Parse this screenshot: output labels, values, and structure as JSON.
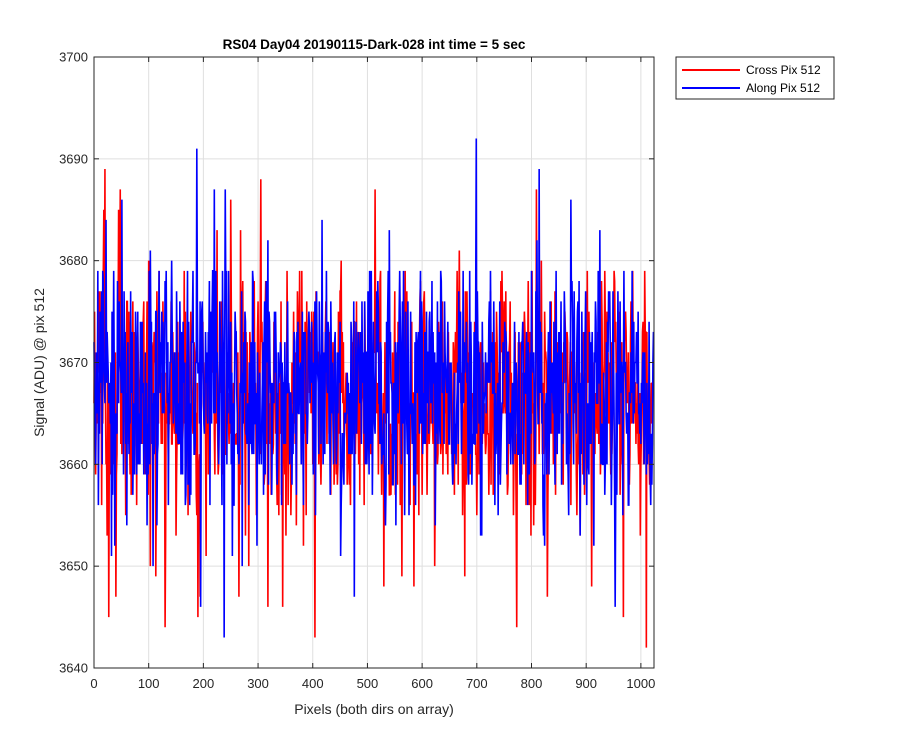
{
  "chart_data": {
    "type": "line",
    "title": "RS04 Day04 20190115-Dark-028 int time = 5 sec",
    "xlabel": "Pixels (both dirs on array)",
    "ylabel": "Signal (ADU) @ pix 512",
    "xlim": [
      0,
      1024
    ],
    "ylim": [
      3640,
      3700
    ],
    "x_ticks": [
      0,
      100,
      200,
      300,
      400,
      500,
      600,
      700,
      800,
      900,
      1000
    ],
    "y_ticks": [
      3640,
      3650,
      3660,
      3670,
      3680,
      3690,
      3700
    ],
    "grid": true,
    "legend_position": "outside top-right",
    "n_points": 1024,
    "series": [
      {
        "name": "Cross Pix 512",
        "color": "#ff0000",
        "anchors": [
          [
            0,
            3666
          ],
          [
            3,
            3659
          ],
          [
            8,
            3677
          ],
          [
            14,
            3656
          ],
          [
            18,
            3685
          ],
          [
            20,
            3689
          ],
          [
            24,
            3653
          ],
          [
            27,
            3645
          ],
          [
            33,
            3668
          ],
          [
            40,
            3647
          ],
          [
            45,
            3685
          ],
          [
            48,
            3687
          ],
          [
            58,
            3655
          ],
          [
            60,
            3676
          ],
          [
            73,
            3660
          ],
          [
            100,
            3680
          ],
          [
            103,
            3650
          ],
          [
            113,
            3649
          ],
          [
            119,
            3679
          ],
          [
            130,
            3644
          ],
          [
            141,
            3676
          ],
          [
            150,
            3653
          ],
          [
            165,
            3679
          ],
          [
            176,
            3669
          ],
          [
            190,
            3645
          ],
          [
            194,
            3647
          ],
          [
            205,
            3651
          ],
          [
            212,
            3674
          ],
          [
            218,
            3669
          ],
          [
            225,
            3683
          ],
          [
            230,
            3670
          ],
          [
            240,
            3661
          ],
          [
            250,
            3686
          ],
          [
            265,
            3647
          ],
          [
            268,
            3683
          ],
          [
            283,
            3650
          ],
          [
            305,
            3688
          ],
          [
            318,
            3646
          ],
          [
            345,
            3646
          ],
          [
            383,
            3652
          ],
          [
            404,
            3643
          ],
          [
            415,
            3658
          ],
          [
            452,
            3680
          ],
          [
            478,
            3661
          ],
          [
            495,
            3676
          ],
          [
            514,
            3687
          ],
          [
            530,
            3648
          ],
          [
            545,
            3658
          ],
          [
            563,
            3649
          ],
          [
            585,
            3648
          ],
          [
            594,
            3655
          ],
          [
            623,
            3650
          ],
          [
            640,
            3662
          ],
          [
            668,
            3681
          ],
          [
            678,
            3649
          ],
          [
            712,
            3670
          ],
          [
            722,
            3657
          ],
          [
            733,
            3669
          ],
          [
            751,
            3666
          ],
          [
            756,
            3657
          ],
          [
            765,
            3663
          ],
          [
            773,
            3644
          ],
          [
            790,
            3656
          ],
          [
            809,
            3687
          ],
          [
            818,
            3680
          ],
          [
            829,
            3647
          ],
          [
            843,
            3677
          ],
          [
            867,
            3662
          ],
          [
            901,
            3666
          ],
          [
            910,
            3648
          ],
          [
            944,
            3662
          ],
          [
            968,
            3645
          ],
          [
            985,
            3679
          ],
          [
            999,
            3653
          ],
          [
            1005,
            3660
          ],
          [
            1010,
            3642
          ],
          [
            1024,
            3651
          ]
        ]
      },
      {
        "name": "Along Pix 512",
        "color": "#0000ff",
        "anchors": [
          [
            0,
            3672
          ],
          [
            3,
            3660
          ],
          [
            8,
            3656
          ],
          [
            16,
            3679
          ],
          [
            22,
            3684
          ],
          [
            32,
            3651
          ],
          [
            38,
            3652
          ],
          [
            46,
            3676
          ],
          [
            51,
            3686
          ],
          [
            60,
            3654
          ],
          [
            72,
            3663
          ],
          [
            80,
            3675
          ],
          [
            95,
            3659
          ],
          [
            103,
            3681
          ],
          [
            108,
            3650
          ],
          [
            115,
            3654
          ],
          [
            130,
            3678
          ],
          [
            142,
            3680
          ],
          [
            151,
            3677
          ],
          [
            163,
            3674
          ],
          [
            170,
            3671
          ],
          [
            176,
            3666
          ],
          [
            188,
            3691
          ],
          [
            195,
            3646
          ],
          [
            212,
            3656
          ],
          [
            220,
            3687
          ],
          [
            231,
            3673
          ],
          [
            238,
            3643
          ],
          [
            240,
            3687
          ],
          [
            253,
            3651
          ],
          [
            261,
            3667
          ],
          [
            271,
            3650
          ],
          [
            290,
            3679
          ],
          [
            298,
            3652
          ],
          [
            318,
            3682
          ],
          [
            332,
            3675
          ],
          [
            345,
            3668
          ],
          [
            366,
            3673
          ],
          [
            384,
            3673
          ],
          [
            398,
            3674
          ],
          [
            405,
            3655
          ],
          [
            417,
            3684
          ],
          [
            430,
            3662
          ],
          [
            438,
            3660
          ],
          [
            451,
            3651
          ],
          [
            459,
            3665
          ],
          [
            476,
            3678
          ],
          [
            476,
            3647
          ],
          [
            487,
            3673
          ],
          [
            497,
            3671
          ],
          [
            514,
            3663
          ],
          [
            532,
            3656
          ],
          [
            540,
            3683
          ],
          [
            552,
            3654
          ],
          [
            568,
            3655
          ],
          [
            580,
            3666
          ],
          [
            598,
            3664
          ],
          [
            619,
            3664
          ],
          [
            636,
            3672
          ],
          [
            658,
            3666
          ],
          [
            667,
            3677
          ],
          [
            678,
            3669
          ],
          [
            699,
            3692
          ],
          [
            701,
            3677
          ],
          [
            715,
            3667
          ],
          [
            725,
            3679
          ],
          [
            739,
            3655
          ],
          [
            752,
            3673
          ],
          [
            766,
            3660
          ],
          [
            772,
            3670
          ],
          [
            793,
            3656
          ],
          [
            800,
            3679
          ],
          [
            810,
            3682
          ],
          [
            814,
            3689
          ],
          [
            824,
            3652
          ],
          [
            831,
            3673
          ],
          [
            840,
            3665
          ],
          [
            847,
            3661
          ],
          [
            860,
            3677
          ],
          [
            872,
            3686
          ],
          [
            888,
            3661
          ],
          [
            899,
            3677
          ],
          [
            907,
            3662
          ],
          [
            914,
            3652
          ],
          [
            925,
            3683
          ],
          [
            933,
            3666
          ],
          [
            943,
            3677
          ],
          [
            953,
            3646
          ],
          [
            964,
            3670
          ],
          [
            974,
            3663
          ],
          [
            987,
            3674
          ],
          [
            994,
            3668
          ],
          [
            1001,
            3668
          ],
          [
            1012,
            3660
          ],
          [
            1024,
            3669
          ]
        ]
      }
    ]
  }
}
